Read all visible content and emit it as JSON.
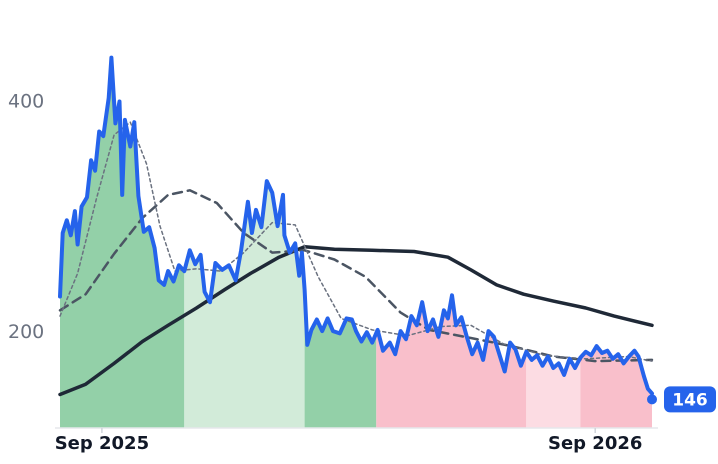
{
  "chart_data": {
    "type": "line",
    "title": "",
    "xlabel": "",
    "ylabel": "",
    "x_range": [
      "2025-08-01",
      "2026-10-13"
    ],
    "ylim": [
      116,
      480
    ],
    "y_ticks": [
      {
        "value": 200,
        "label": "200"
      },
      {
        "value": 400,
        "label": "400"
      }
    ],
    "x_ticks": [
      {
        "value": "2025-09-01",
        "label": "Sep 2025"
      },
      {
        "value": "2026-09-01",
        "label": "Sep 2026"
      }
    ],
    "grid": false,
    "legend": "none",
    "last_value_label": "146",
    "last_value": 146,
    "last_date": "2026-10-13",
    "colors": {
      "price": "#2563eb",
      "ma_long": "#1f2937",
      "ma_medium": "#4b5563",
      "ma_short": "#6b7280",
      "band_up_strong": "#93d0a8",
      "band_up_light": "#d2ebd9",
      "band_down_strong": "#f9bfcb",
      "band_down_light": "#fcdce3",
      "badge": "#2563eb",
      "axis": "#e5e7eb"
    },
    "bands": [
      {
        "start": "2025-08-01",
        "end": "2025-11-01",
        "trend": "up",
        "shade": "strong"
      },
      {
        "start": "2025-11-01",
        "end": "2026-01-29",
        "trend": "up",
        "shade": "light"
      },
      {
        "start": "2026-01-29",
        "end": "2026-03-23",
        "trend": "up",
        "shade": "strong"
      },
      {
        "start": "2026-03-23",
        "end": "2026-07-12",
        "trend": "down",
        "shade": "strong"
      },
      {
        "start": "2026-07-12",
        "end": "2026-08-21",
        "trend": "down",
        "shade": "light"
      },
      {
        "start": "2026-08-21",
        "end": "2026-12-18",
        "trend": "down",
        "shade": "strong"
      },
      {
        "start": "2026-12-18",
        "end": "2027-02-20",
        "trend": "down",
        "shade": "light"
      }
    ],
    "series": [
      {
        "key": "price",
        "points": [
          [
            "2025-08-01",
            230
          ],
          [
            "2025-08-03",
            285
          ],
          [
            "2025-08-06",
            296
          ],
          [
            "2025-08-09",
            283
          ],
          [
            "2025-08-12",
            304
          ],
          [
            "2025-08-14",
            275
          ],
          [
            "2025-08-17",
            308
          ],
          [
            "2025-08-21",
            316
          ],
          [
            "2025-08-24",
            348
          ],
          [
            "2025-08-27",
            339
          ],
          [
            "2025-08-30",
            373
          ],
          [
            "2025-09-02",
            369
          ],
          [
            "2025-09-06",
            402
          ],
          [
            "2025-09-08",
            437
          ],
          [
            "2025-09-11",
            380
          ],
          [
            "2025-09-14",
            399
          ],
          [
            "2025-09-16",
            318
          ],
          [
            "2025-09-18",
            383
          ],
          [
            "2025-09-22",
            360
          ],
          [
            "2025-09-25",
            381
          ],
          [
            "2025-09-28",
            317
          ],
          [
            "2025-10-02",
            286
          ],
          [
            "2025-10-06",
            290
          ],
          [
            "2025-10-10",
            272
          ],
          [
            "2025-10-13",
            244
          ],
          [
            "2025-10-17",
            240
          ],
          [
            "2025-10-20",
            252
          ],
          [
            "2025-10-24",
            243
          ],
          [
            "2025-10-28",
            257
          ],
          [
            "2025-11-01",
            252
          ],
          [
            "2025-11-05",
            270
          ],
          [
            "2025-11-09",
            258
          ],
          [
            "2025-11-13",
            266
          ],
          [
            "2025-11-16",
            234
          ],
          [
            "2025-11-20",
            225
          ],
          [
            "2025-11-24",
            259
          ],
          [
            "2025-11-29",
            253
          ],
          [
            "2025-12-04",
            257
          ],
          [
            "2025-12-09",
            244
          ],
          [
            "2025-12-13",
            270
          ],
          [
            "2025-12-18",
            312
          ],
          [
            "2025-12-21",
            285
          ],
          [
            "2025-12-24",
            305
          ],
          [
            "2025-12-28",
            290
          ],
          [
            "2026-01-01",
            330
          ],
          [
            "2026-01-05",
            320
          ],
          [
            "2026-01-09",
            291
          ],
          [
            "2026-01-13",
            318
          ],
          [
            "2026-01-14",
            283
          ],
          [
            "2026-01-18",
            268
          ],
          [
            "2026-01-22",
            276
          ],
          [
            "2026-01-25",
            248
          ],
          [
            "2026-01-27",
            268
          ],
          [
            "2026-01-29",
            236
          ],
          [
            "2026-01-31",
            188
          ],
          [
            "2026-02-03",
            201
          ],
          [
            "2026-02-07",
            210
          ],
          [
            "2026-02-11",
            200
          ],
          [
            "2026-02-15",
            211
          ],
          [
            "2026-02-19",
            200
          ],
          [
            "2026-02-24",
            198
          ],
          [
            "2026-03-01",
            211
          ],
          [
            "2026-03-05",
            210
          ],
          [
            "2026-03-08",
            200
          ],
          [
            "2026-03-12",
            191
          ],
          [
            "2026-03-16",
            199
          ],
          [
            "2026-03-20",
            190
          ],
          [
            "2026-03-24",
            201
          ],
          [
            "2026-03-28",
            183
          ],
          [
            "2026-04-02",
            190
          ],
          [
            "2026-04-06",
            180
          ],
          [
            "2026-04-10",
            200
          ],
          [
            "2026-04-14",
            193
          ],
          [
            "2026-04-18",
            213
          ],
          [
            "2026-04-22",
            205
          ],
          [
            "2026-04-26",
            225
          ],
          [
            "2026-04-30",
            200
          ],
          [
            "2026-05-04",
            210
          ],
          [
            "2026-05-08",
            195
          ],
          [
            "2026-05-12",
            218
          ],
          [
            "2026-05-15",
            211
          ],
          [
            "2026-05-18",
            231
          ],
          [
            "2026-05-21",
            205
          ],
          [
            "2026-05-25",
            212
          ],
          [
            "2026-05-29",
            195
          ],
          [
            "2026-06-02",
            180
          ],
          [
            "2026-06-06",
            190
          ],
          [
            "2026-06-10",
            175
          ],
          [
            "2026-06-14",
            200
          ],
          [
            "2026-06-18",
            195
          ],
          [
            "2026-06-22",
            180
          ],
          [
            "2026-06-26",
            165
          ],
          [
            "2026-06-30",
            190
          ],
          [
            "2026-07-04",
            184
          ],
          [
            "2026-07-08",
            170
          ],
          [
            "2026-07-12",
            182
          ],
          [
            "2026-07-16",
            175
          ],
          [
            "2026-07-20",
            179
          ],
          [
            "2026-07-24",
            170
          ],
          [
            "2026-07-28",
            178
          ],
          [
            "2026-08-01",
            168
          ],
          [
            "2026-08-05",
            172
          ],
          [
            "2026-08-09",
            162
          ],
          [
            "2026-08-13",
            176
          ],
          [
            "2026-08-17",
            168
          ],
          [
            "2026-08-21",
            177
          ],
          [
            "2026-08-25",
            182
          ],
          [
            "2026-08-29",
            179
          ],
          [
            "2026-09-02",
            187
          ],
          [
            "2026-09-06",
            181
          ],
          [
            "2026-09-10",
            183
          ],
          [
            "2026-09-14",
            176
          ],
          [
            "2026-09-18",
            180
          ],
          [
            "2026-09-22",
            172
          ],
          [
            "2026-09-26",
            178
          ],
          [
            "2026-09-30",
            183
          ],
          [
            "2026-10-03",
            178
          ],
          [
            "2026-10-07",
            161
          ],
          [
            "2026-10-10",
            150
          ],
          [
            "2026-10-13",
            146
          ]
        ]
      },
      {
        "key": "ma_long",
        "points": [
          [
            "2025-08-01",
            145
          ],
          [
            "2025-08-20",
            154
          ],
          [
            "2025-09-10",
            172
          ],
          [
            "2025-10-01",
            191
          ],
          [
            "2025-10-20",
            205
          ],
          [
            "2025-11-10",
            220
          ],
          [
            "2025-12-01",
            236
          ],
          [
            "2025-12-20",
            250
          ],
          [
            "2026-01-10",
            264
          ],
          [
            "2026-01-29",
            273
          ],
          [
            "2026-02-20",
            271
          ],
          [
            "2026-03-20",
            270
          ],
          [
            "2026-04-20",
            269
          ],
          [
            "2026-05-15",
            264
          ],
          [
            "2026-06-01",
            253
          ],
          [
            "2026-06-20",
            240
          ],
          [
            "2026-07-10",
            232
          ],
          [
            "2026-08-01",
            226
          ],
          [
            "2026-08-25",
            220
          ],
          [
            "2026-09-15",
            213
          ],
          [
            "2026-10-13",
            205
          ]
        ]
      },
      {
        "key": "ma_medium",
        "points": [
          [
            "2025-08-01",
            218
          ],
          [
            "2025-08-20",
            232
          ],
          [
            "2025-09-10",
            267
          ],
          [
            "2025-10-01",
            298
          ],
          [
            "2025-10-20",
            318
          ],
          [
            "2025-11-05",
            322
          ],
          [
            "2025-11-25",
            311
          ],
          [
            "2025-12-15",
            285
          ],
          [
            "2026-01-05",
            268
          ],
          [
            "2026-01-29",
            270
          ],
          [
            "2026-02-20",
            262
          ],
          [
            "2026-03-15",
            247
          ],
          [
            "2026-04-10",
            216
          ],
          [
            "2026-05-01",
            201
          ],
          [
            "2026-06-01",
            194
          ],
          [
            "2026-07-01",
            187
          ],
          [
            "2026-08-01",
            178
          ],
          [
            "2026-09-01",
            174
          ],
          [
            "2026-10-13",
            175
          ]
        ]
      },
      {
        "key": "ma_short",
        "points": [
          [
            "2025-08-01",
            213
          ],
          [
            "2025-08-14",
            250
          ],
          [
            "2025-08-28",
            315
          ],
          [
            "2025-09-10",
            370
          ],
          [
            "2025-09-22",
            381
          ],
          [
            "2025-10-04",
            345
          ],
          [
            "2025-10-14",
            291
          ],
          [
            "2025-10-25",
            252
          ],
          [
            "2025-11-10",
            254
          ],
          [
            "2025-11-28",
            252
          ],
          [
            "2025-12-15",
            268
          ],
          [
            "2026-01-05",
            294
          ],
          [
            "2026-01-22",
            292
          ],
          [
            "2026-02-08",
            247
          ],
          [
            "2026-02-25",
            211
          ],
          [
            "2026-03-20",
            201
          ],
          [
            "2026-04-15",
            196
          ],
          [
            "2026-05-10",
            204
          ],
          [
            "2026-06-01",
            205
          ],
          [
            "2026-06-25",
            189
          ],
          [
            "2026-07-25",
            179
          ],
          [
            "2026-08-25",
            176
          ],
          [
            "2026-09-25",
            178
          ],
          [
            "2026-10-13",
            174
          ]
        ]
      }
    ]
  }
}
